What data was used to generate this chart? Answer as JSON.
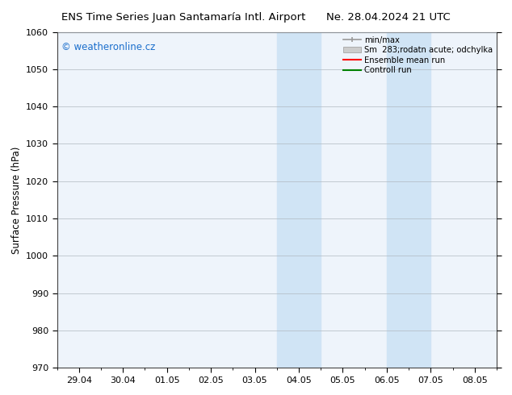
{
  "title_left": "ENS Time Series Juan Santamaría Intl. Airport",
  "title_right": "Ne. 28.04.2024 21 UTC",
  "ylabel": "Surface Pressure (hPa)",
  "watermark": "© weatheronline.cz",
  "ylim": [
    970,
    1060
  ],
  "yticks": [
    970,
    980,
    990,
    1000,
    1010,
    1020,
    1030,
    1040,
    1050,
    1060
  ],
  "xtick_labels": [
    "29.04",
    "30.04",
    "01.05",
    "02.05",
    "03.05",
    "04.05",
    "05.05",
    "06.05",
    "07.05",
    "08.05"
  ],
  "xtick_positions": [
    0,
    1,
    2,
    3,
    4,
    5,
    6,
    7,
    8,
    9
  ],
  "xlim": [
    -0.5,
    9.5
  ],
  "shaded_bands": [
    {
      "xmin": 4.5,
      "xmax": 5.5
    },
    {
      "xmin": 7.0,
      "xmax": 8.0
    }
  ],
  "plot_bg_color": "#eef4fb",
  "shaded_color": "#d0e4f5",
  "grid_color": "#b0b8c0",
  "legend_entries": [
    {
      "label": "min/max",
      "color": "#aaaaaa",
      "style": "errbar"
    },
    {
      "label": "Sm  283;rodatn acute; odchylka",
      "color": "#cccccc",
      "style": "fill"
    },
    {
      "label": "Ensemble mean run",
      "color": "red",
      "style": "line"
    },
    {
      "label": "Controll run",
      "color": "green",
      "style": "line"
    }
  ],
  "fig_width": 6.34,
  "fig_height": 4.9,
  "dpi": 100,
  "bg_color": "#ffffff",
  "title_fontsize": 9.5,
  "axis_label_fontsize": 8.5,
  "tick_fontsize": 8.0,
  "watermark_color": "#1a6ecc",
  "watermark_fontsize": 8.5,
  "spine_color": "#444444"
}
